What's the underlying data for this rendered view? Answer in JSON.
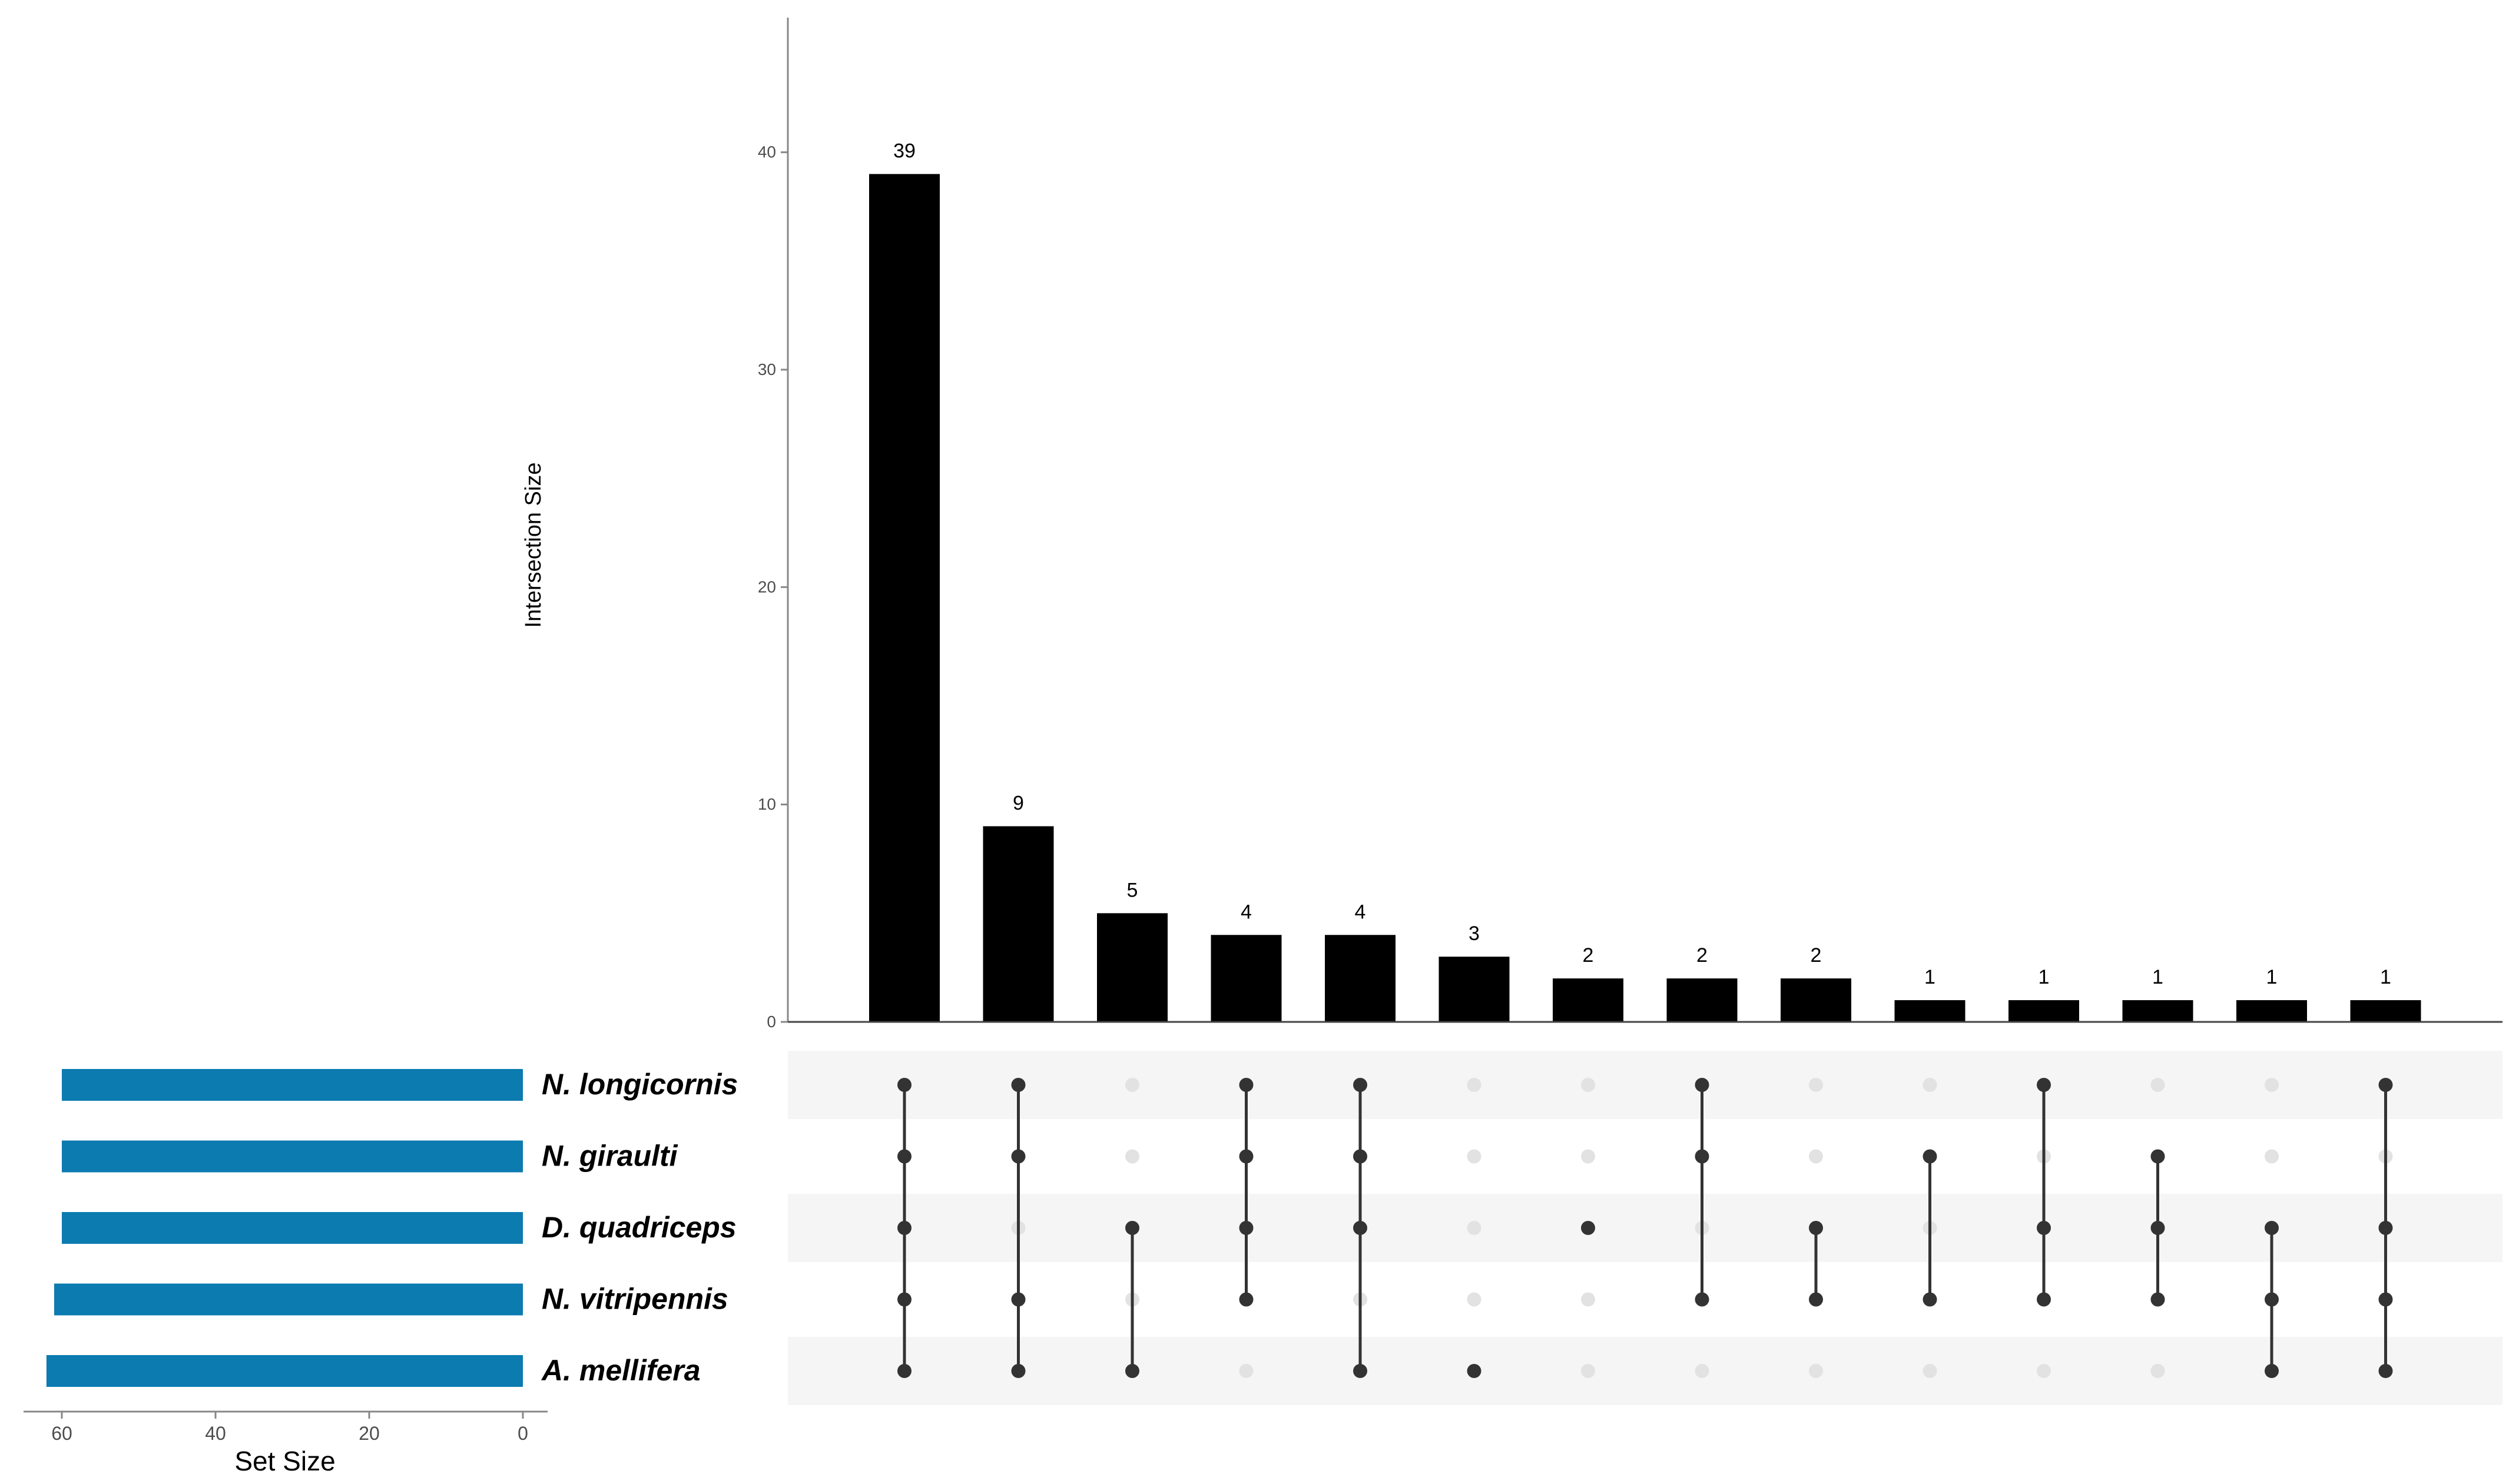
{
  "chart_data": {
    "type": "upset",
    "intersection_axis": {
      "ylabel": "Intersection Size",
      "ylim": [
        0,
        45
      ],
      "ticks": [
        0,
        10,
        20,
        30,
        40
      ]
    },
    "intersections": [
      {
        "value": 39,
        "label": "39",
        "sets": [
          "N. longicornis",
          "N. giraulti",
          "D. quadriceps",
          "N. vitripennis",
          "A. mellifera"
        ]
      },
      {
        "value": 9,
        "label": "9",
        "sets": [
          "N. longicornis",
          "N. giraulti",
          "N. vitripennis",
          "A. mellifera"
        ]
      },
      {
        "value": 5,
        "label": "5",
        "sets": [
          "D. quadriceps",
          "A. mellifera"
        ]
      },
      {
        "value": 4,
        "label": "4",
        "sets": [
          "N. longicornis",
          "N. giraulti",
          "D. quadriceps",
          "N. vitripennis"
        ]
      },
      {
        "value": 4,
        "label": "4",
        "sets": [
          "N. longicornis",
          "N. giraulti",
          "D. quadriceps",
          "A. mellifera"
        ]
      },
      {
        "value": 3,
        "label": "3",
        "sets": [
          "A. mellifera"
        ]
      },
      {
        "value": 2,
        "label": "2",
        "sets": [
          "D. quadriceps"
        ]
      },
      {
        "value": 2,
        "label": "2",
        "sets": [
          "N. longicornis",
          "N. giraulti",
          "N. vitripennis"
        ]
      },
      {
        "value": 2,
        "label": "2",
        "sets": [
          "D. quadriceps",
          "N. vitripennis"
        ]
      },
      {
        "value": 1,
        "label": "1",
        "sets": [
          "N. giraulti",
          "N. vitripennis"
        ]
      },
      {
        "value": 1,
        "label": "1",
        "sets": [
          "N. longicornis",
          "D. quadriceps",
          "N. vitripennis"
        ]
      },
      {
        "value": 1,
        "label": "1",
        "sets": [
          "N. giraulti",
          "D. quadriceps",
          "N. vitripennis"
        ]
      },
      {
        "value": 1,
        "label": "1",
        "sets": [
          "D. quadriceps",
          "N. vitripennis",
          "A. mellifera"
        ]
      },
      {
        "value": 1,
        "label": "1",
        "sets": [
          "N. longicornis",
          "D. quadriceps",
          "N. vitripennis",
          "A. mellifera"
        ]
      }
    ],
    "sets": [
      {
        "name": "N. longicornis",
        "size": 60
      },
      {
        "name": "N. giraulti",
        "size": 60
      },
      {
        "name": "D. quadriceps",
        "size": 60
      },
      {
        "name": "N. vitripennis",
        "size": 61
      },
      {
        "name": "A. mellifera",
        "size": 62
      }
    ],
    "set_size_axis": {
      "xlabel": "Set Size",
      "ticks": [
        60,
        40,
        20,
        0
      ],
      "xlim": [
        64,
        0
      ]
    },
    "colors": {
      "intersection_bar": "#000000",
      "set_bar": "#0b7bb0",
      "dot_active": "#333333",
      "dot_inactive": "#e2e2e2",
      "stripe": "#f5f5f5",
      "axis": "#888888",
      "tick_label": "#4d4d4d"
    }
  }
}
